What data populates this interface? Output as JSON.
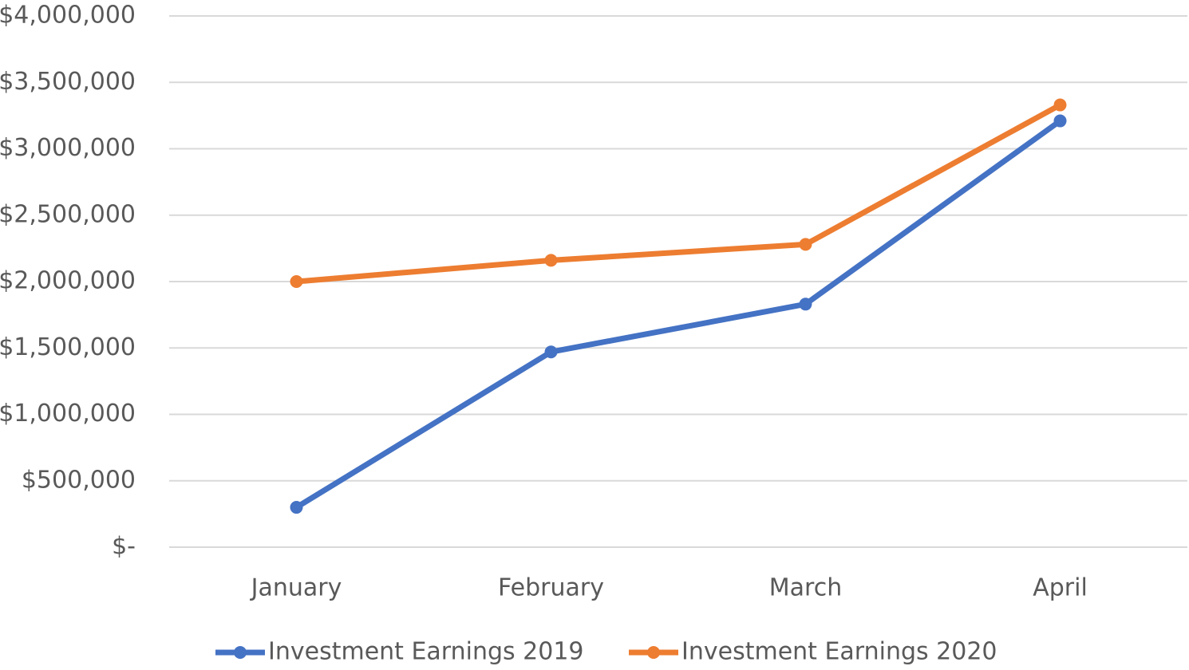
{
  "chart_data": {
    "type": "line",
    "categories": [
      "January",
      "February",
      "March",
      "April"
    ],
    "series": [
      {
        "name": "Investment Earnings 2019",
        "color": "#4472c4",
        "values": [
          300000,
          1470000,
          1830000,
          3210000
        ]
      },
      {
        "name": "Investment Earnings 2020",
        "color": "#ed7d31",
        "values": [
          2000000,
          2160000,
          2280000,
          3330000
        ]
      }
    ],
    "ylim": [
      0,
      4000000
    ],
    "yticks": [
      {
        "value": 0,
        "label": "$-"
      },
      {
        "value": 500000,
        "label": "$500,000"
      },
      {
        "value": 1000000,
        "label": "$1,000,000"
      },
      {
        "value": 1500000,
        "label": "$1,500,000"
      },
      {
        "value": 2000000,
        "label": "$2,000,000"
      },
      {
        "value": 2500000,
        "label": "$2,500,000"
      },
      {
        "value": 3000000,
        "label": "$3,000,000"
      },
      {
        "value": 3500000,
        "label": "$3,500,000"
      },
      {
        "value": 4000000,
        "label": "$4,000,000"
      }
    ],
    "grid": true,
    "legend": "bottom"
  }
}
